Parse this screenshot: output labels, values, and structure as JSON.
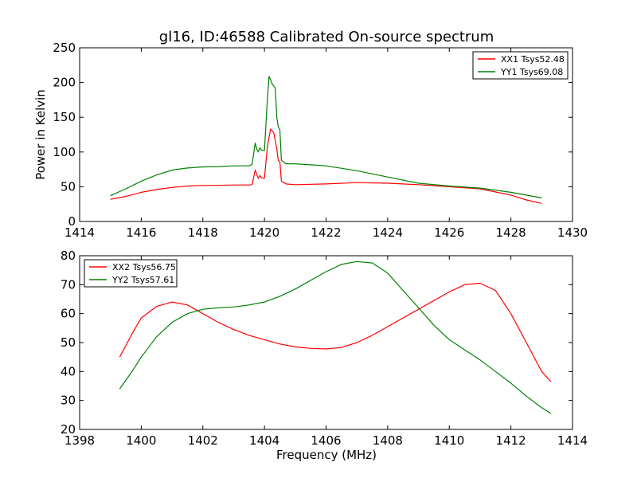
{
  "chart_data": [
    {
      "type": "line",
      "title": "gl16, ID:46588 Calibrated On-source spectrum",
      "xlabel": "",
      "ylabel": "Power in Kelvin",
      "xlim": [
        1414,
        1430
      ],
      "ylim": [
        0,
        250
      ],
      "xticks": [
        1414,
        1416,
        1418,
        1420,
        1422,
        1424,
        1426,
        1428,
        1430
      ],
      "yticks": [
        0,
        50,
        100,
        150,
        200,
        250
      ],
      "grid": false,
      "legend_position": "upper right",
      "series": [
        {
          "name": "XX1 Tsys52.48",
          "color": "#ff0000",
          "points": [
            [
              1415,
              32
            ],
            [
              1415.5,
              36
            ],
            [
              1416,
              42
            ],
            [
              1416.5,
              46
            ],
            [
              1417,
              49
            ],
            [
              1417.5,
              51
            ],
            [
              1418,
              52
            ],
            [
              1418.5,
              52
            ],
            [
              1419,
              52.5
            ],
            [
              1419.5,
              52.5
            ],
            [
              1419.6,
              53
            ],
            [
              1419.7,
              74
            ],
            [
              1419.75,
              68
            ],
            [
              1419.8,
              62
            ],
            [
              1419.85,
              66
            ],
            [
              1419.9,
              63
            ],
            [
              1420,
              62
            ],
            [
              1420.1,
              110
            ],
            [
              1420.2,
              133
            ],
            [
              1420.3,
              128
            ],
            [
              1420.4,
              105
            ],
            [
              1420.45,
              88
            ],
            [
              1420.5,
              86
            ],
            [
              1420.55,
              58
            ],
            [
              1420.7,
              54
            ],
            [
              1421,
              53
            ],
            [
              1422,
              54
            ],
            [
              1423,
              56
            ],
            [
              1424,
              55
            ],
            [
              1425,
              53
            ],
            [
              1426,
              50
            ],
            [
              1427,
              47
            ],
            [
              1428,
              38
            ],
            [
              1428.5,
              31
            ],
            [
              1429,
              26
            ]
          ]
        },
        {
          "name": "YY1 Tsys69.08",
          "color": "#008000",
          "points": [
            [
              1415,
              37
            ],
            [
              1415.5,
              47
            ],
            [
              1416,
              58
            ],
            [
              1416.5,
              67
            ],
            [
              1417,
              74
            ],
            [
              1417.5,
              77
            ],
            [
              1418,
              78.5
            ],
            [
              1418.5,
              79
            ],
            [
              1419,
              80
            ],
            [
              1419.5,
              80
            ],
            [
              1419.6,
              82
            ],
            [
              1419.7,
              113
            ],
            [
              1419.75,
              104
            ],
            [
              1419.8,
              100
            ],
            [
              1419.85,
              106
            ],
            [
              1419.9,
              103
            ],
            [
              1420,
              102
            ],
            [
              1420.1,
              180
            ],
            [
              1420.15,
              209
            ],
            [
              1420.25,
              198
            ],
            [
              1420.35,
              192
            ],
            [
              1420.4,
              150
            ],
            [
              1420.45,
              136
            ],
            [
              1420.5,
              132
            ],
            [
              1420.55,
              88
            ],
            [
              1420.7,
              83
            ],
            [
              1421,
              83
            ],
            [
              1422,
              80
            ],
            [
              1423,
              73
            ],
            [
              1424,
              64
            ],
            [
              1425,
              55
            ],
            [
              1426,
              51
            ],
            [
              1427,
              48
            ],
            [
              1428,
              42
            ],
            [
              1428.5,
              38
            ],
            [
              1429,
              34
            ]
          ]
        }
      ]
    },
    {
      "type": "line",
      "title": "",
      "xlabel": "Frequency (MHz)",
      "ylabel": "",
      "xlim": [
        1398,
        1414
      ],
      "ylim": [
        20,
        80
      ],
      "xticks": [
        1398,
        1400,
        1402,
        1404,
        1406,
        1408,
        1410,
        1412,
        1414
      ],
      "yticks": [
        20,
        30,
        40,
        50,
        60,
        70,
        80
      ],
      "grid": false,
      "legend_position": "upper left",
      "series": [
        {
          "name": "XX2 Tsys56.75",
          "color": "#ff0000",
          "points": [
            [
              1399.3,
              45
            ],
            [
              1399.7,
              53
            ],
            [
              1400,
              58.5
            ],
            [
              1400.5,
              62.5
            ],
            [
              1401,
              64
            ],
            [
              1401.5,
              63
            ],
            [
              1402,
              60
            ],
            [
              1402.5,
              57
            ],
            [
              1403,
              54.5
            ],
            [
              1403.5,
              52.5
            ],
            [
              1404,
              51
            ],
            [
              1404.5,
              49.5
            ],
            [
              1405,
              48.5
            ],
            [
              1405.5,
              48
            ],
            [
              1406,
              47.8
            ],
            [
              1406.5,
              48.3
            ],
            [
              1407,
              50
            ],
            [
              1407.5,
              52.5
            ],
            [
              1408,
              55.5
            ],
            [
              1408.5,
              58.5
            ],
            [
              1409,
              61.5
            ],
            [
              1409.5,
              64.5
            ],
            [
              1410,
              67.5
            ],
            [
              1410.5,
              70
            ],
            [
              1411,
              70.5
            ],
            [
              1411.5,
              68
            ],
            [
              1412,
              60
            ],
            [
              1412.5,
              50
            ],
            [
              1413,
              40
            ],
            [
              1413.3,
              36.5
            ]
          ]
        },
        {
          "name": "YY2 Tsys57.61",
          "color": "#008000",
          "points": [
            [
              1399.3,
              34
            ],
            [
              1399.7,
              40
            ],
            [
              1400,
              45
            ],
            [
              1400.5,
              52
            ],
            [
              1401,
              57
            ],
            [
              1401.5,
              60
            ],
            [
              1402,
              61.5
            ],
            [
              1402.5,
              62
            ],
            [
              1403,
              62.3
            ],
            [
              1403.5,
              63
            ],
            [
              1404,
              64
            ],
            [
              1404.5,
              66
            ],
            [
              1405,
              68.5
            ],
            [
              1405.5,
              71.5
            ],
            [
              1406,
              74.5
            ],
            [
              1406.5,
              77
            ],
            [
              1407,
              78
            ],
            [
              1407.5,
              77.5
            ],
            [
              1408,
              74
            ],
            [
              1408.5,
              68
            ],
            [
              1409,
              62
            ],
            [
              1409.5,
              56
            ],
            [
              1410,
              51
            ],
            [
              1410.5,
              47.5
            ],
            [
              1411,
              44
            ],
            [
              1411.5,
              40
            ],
            [
              1412,
              36
            ],
            [
              1412.5,
              31.5
            ],
            [
              1413,
              27.5
            ],
            [
              1413.3,
              25.5
            ]
          ]
        }
      ]
    }
  ]
}
